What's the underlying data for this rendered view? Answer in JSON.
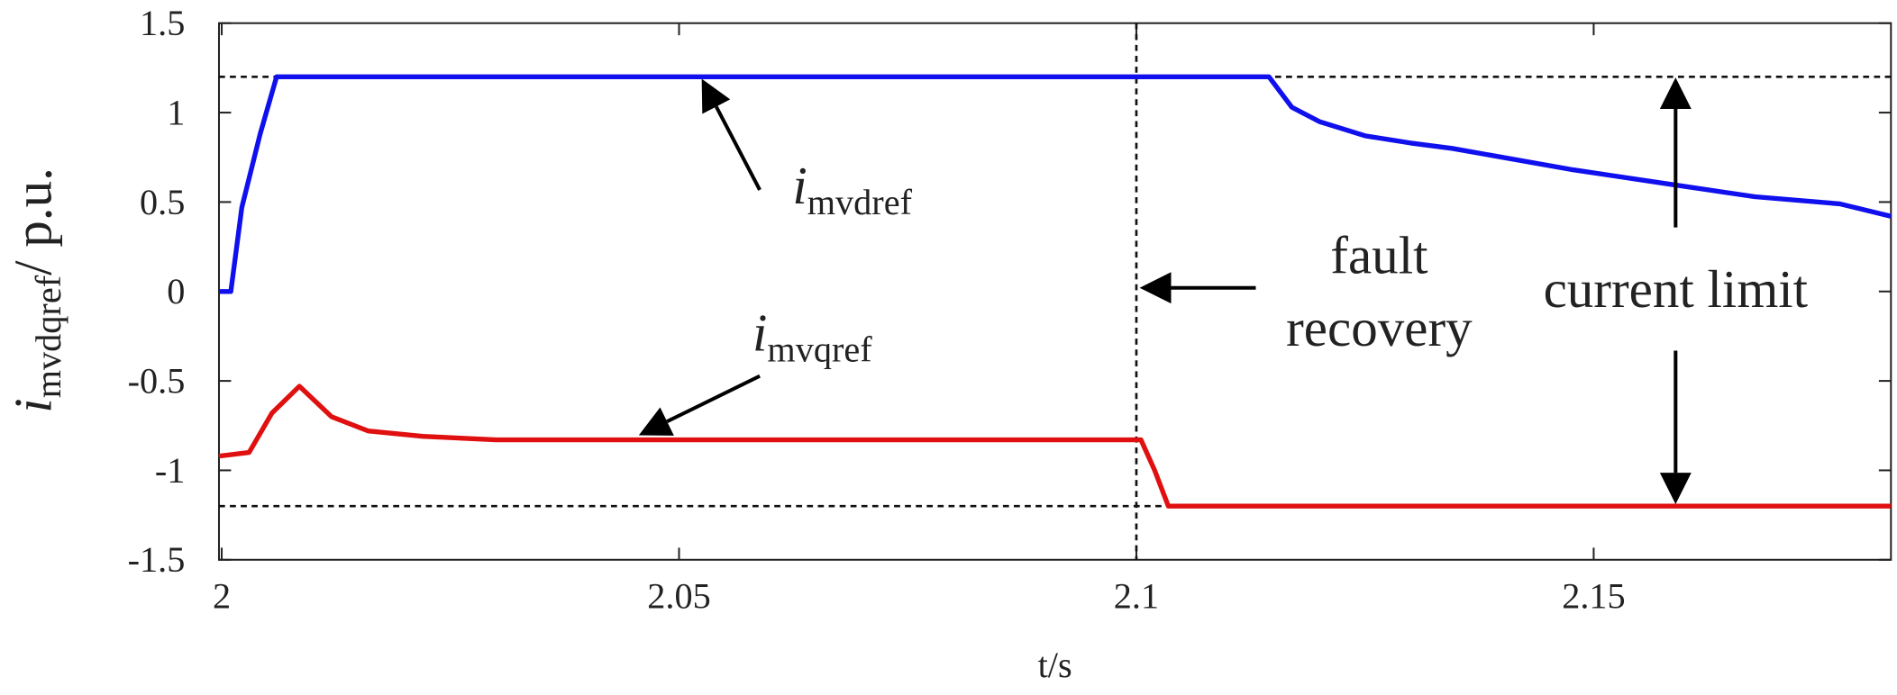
{
  "chart_data": {
    "type": "line",
    "x_label": "t/s",
    "y_label": {
      "main": "i",
      "sub": "mvdqref",
      "unit": "/ p.u."
    },
    "xlim": [
      1.9997,
      2.1825
    ],
    "ylim": [
      -1.5,
      1.5
    ],
    "xticks": [
      2,
      2.05,
      2.1,
      2.15
    ],
    "yticks": [
      -1.5,
      -1,
      -0.5,
      0,
      0.5,
      1,
      1.5
    ],
    "grid": false,
    "hlines": [
      1.2,
      -1.2
    ],
    "vlines": [
      2.1
    ],
    "series": [
      {
        "name": {
          "main": "i",
          "sub": "mvdref"
        },
        "color": "#1010ee",
        "x": [
          1.9997,
          2.001,
          2.0022,
          2.0042,
          2.006,
          2.1145,
          2.117,
          2.12,
          2.125,
          2.13,
          2.1345,
          2.1478,
          2.1583,
          2.1676,
          2.1769,
          2.1825
        ],
        "values": [
          0,
          0,
          0.47,
          0.88,
          1.2,
          1.2,
          1.03,
          0.95,
          0.87,
          0.83,
          0.8,
          0.68,
          0.6,
          0.53,
          0.49,
          0.42
        ]
      },
      {
        "name": {
          "main": "i",
          "sub": "mvqref"
        },
        "color": "#e01010",
        "x": [
          1.9997,
          2.003,
          2.0055,
          2.0085,
          2.012,
          2.016,
          2.022,
          2.03,
          2.1005,
          2.102,
          2.1035,
          2.1825
        ],
        "values": [
          -0.92,
          -0.9,
          -0.68,
          -0.53,
          -0.7,
          -0.78,
          -0.81,
          -0.83,
          -0.83,
          -1.0,
          -1.2,
          -1.2
        ]
      }
    ],
    "annotations": [
      {
        "lines": [
          "fault",
          "recovery"
        ]
      },
      {
        "lines": [
          "current limit"
        ]
      }
    ]
  }
}
